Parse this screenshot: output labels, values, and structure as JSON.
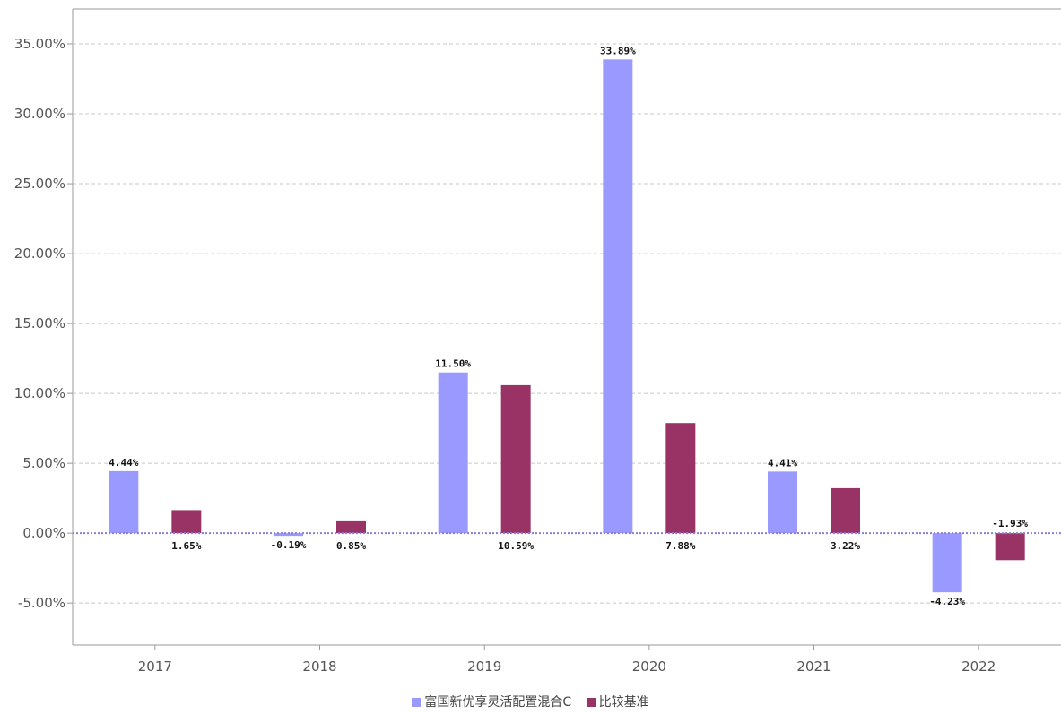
{
  "chart_data": {
    "type": "bar",
    "categories": [
      "2017",
      "2018",
      "2019",
      "2020",
      "2021",
      "2022"
    ],
    "series": [
      {
        "name": "富国新优享灵活配置混合C",
        "color": "#9999ff",
        "values": [
          4.44,
          -0.19,
          11.5,
          33.89,
          4.41,
          -4.23
        ],
        "labels": [
          "4.44%",
          "-0.19%",
          "11.50%",
          "33.89%",
          "4.41%",
          "-4.23%"
        ]
      },
      {
        "name": "比较基准",
        "color": "#993366",
        "values": [
          1.65,
          0.85,
          10.59,
          7.88,
          3.22,
          -1.93
        ],
        "labels": [
          "1.65%",
          "0.85%",
          "10.59%",
          "7.88%",
          "3.22%",
          "-1.93%"
        ]
      }
    ],
    "yticks": [
      "-5.00%",
      "0.00%",
      "5.00%",
      "10.00%",
      "15.00%",
      "20.00%",
      "25.00%",
      "30.00%",
      "35.00%"
    ],
    "ylim": [
      -8,
      37.5
    ],
    "title": "",
    "xlabel": "",
    "ylabel": "",
    "grid": true,
    "legend_position": "bottom"
  }
}
